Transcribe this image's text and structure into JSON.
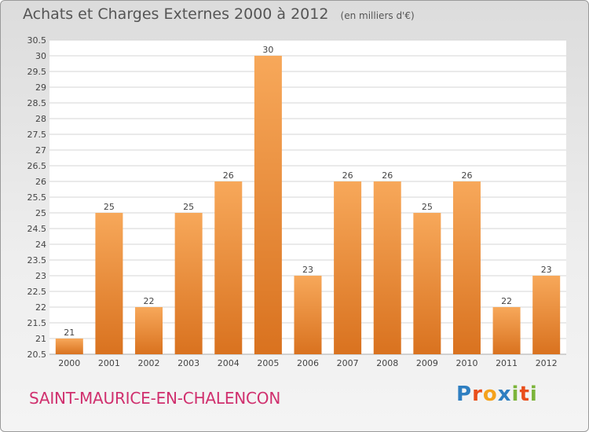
{
  "title": "Achats et Charges Externes 2000 à 2012",
  "unit_note": "(en milliers d'€)",
  "city": "SAINT-MAURICE-EN-CHALENCON",
  "brand": {
    "text": "Proxiti",
    "letters": [
      {
        "char": "P",
        "color": "#2f7fc1"
      },
      {
        "char": "r",
        "color": "#e94e1b"
      },
      {
        "char": "o",
        "color": "#f4a21c"
      },
      {
        "char": "x",
        "color": "#2f7fc1"
      },
      {
        "char": "i",
        "color": "#7cb43a"
      },
      {
        "char": "t",
        "color": "#e94e1b"
      },
      {
        "char": "i",
        "color": "#7cb43a"
      }
    ]
  },
  "colors": {
    "bar_top": "#f7a85a",
    "bar_bottom": "#d9721f",
    "grid": "#d6d6d6",
    "plot_bg": "#ffffff"
  },
  "chart_data": {
    "type": "bar",
    "categories": [
      "2000",
      "2001",
      "2002",
      "2003",
      "2004",
      "2005",
      "2006",
      "2007",
      "2008",
      "2009",
      "2010",
      "2011",
      "2012"
    ],
    "values": [
      21,
      25,
      22,
      25,
      26,
      30,
      23,
      26,
      26,
      25,
      26,
      22,
      23
    ],
    "data_labels": [
      "21",
      "25",
      "22",
      "25",
      "26",
      "30",
      "23",
      "26",
      "26",
      "25",
      "26",
      "22",
      "23"
    ],
    "title": "Achats et Charges Externes 2000 à 2012",
    "ylim": [
      20.5,
      30.5
    ],
    "yticks": [
      "20.5",
      "21",
      "21.5",
      "22",
      "22.5",
      "23",
      "23.5",
      "24",
      "24.5",
      "25",
      "25.5",
      "26",
      "26.5",
      "27",
      "27.5",
      "28",
      "28.5",
      "29",
      "29.5",
      "30",
      "30.5"
    ],
    "grid": true,
    "legend": "none"
  }
}
